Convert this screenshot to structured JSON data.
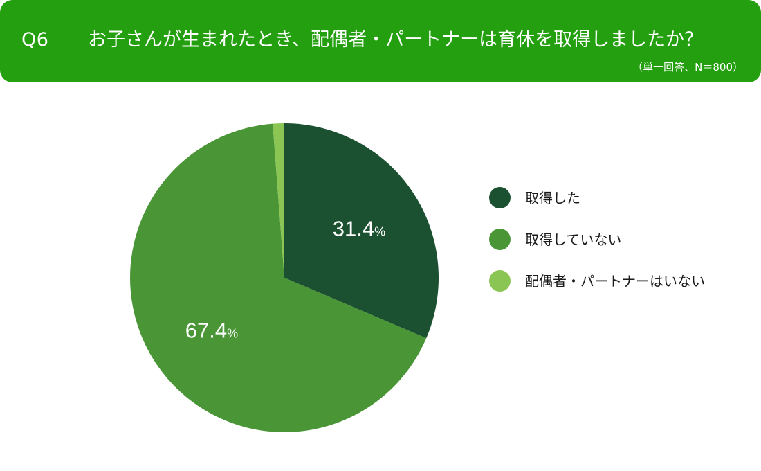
{
  "header": {
    "q_label": "Q6",
    "title": "お子さんが生まれたとき、配偶者・パートナーは育休を取得しましたか？",
    "note": "（単一回答、N＝800）"
  },
  "colors": {
    "header_bg": "#239f0f",
    "took": "#1b5131",
    "not_took": "#4a9637",
    "no_partner": "#8bc553"
  },
  "chart_data": {
    "type": "pie",
    "categories": [
      "取得した",
      "取得していない",
      "配偶者・パートナーはいない"
    ],
    "values": [
      31.4,
      67.4,
      1.2
    ],
    "data_labels": [
      "31.4",
      "67.4",
      ""
    ],
    "unit": "%",
    "start": "12 o'clock",
    "direction": "clockwise",
    "legend_position": "right"
  }
}
